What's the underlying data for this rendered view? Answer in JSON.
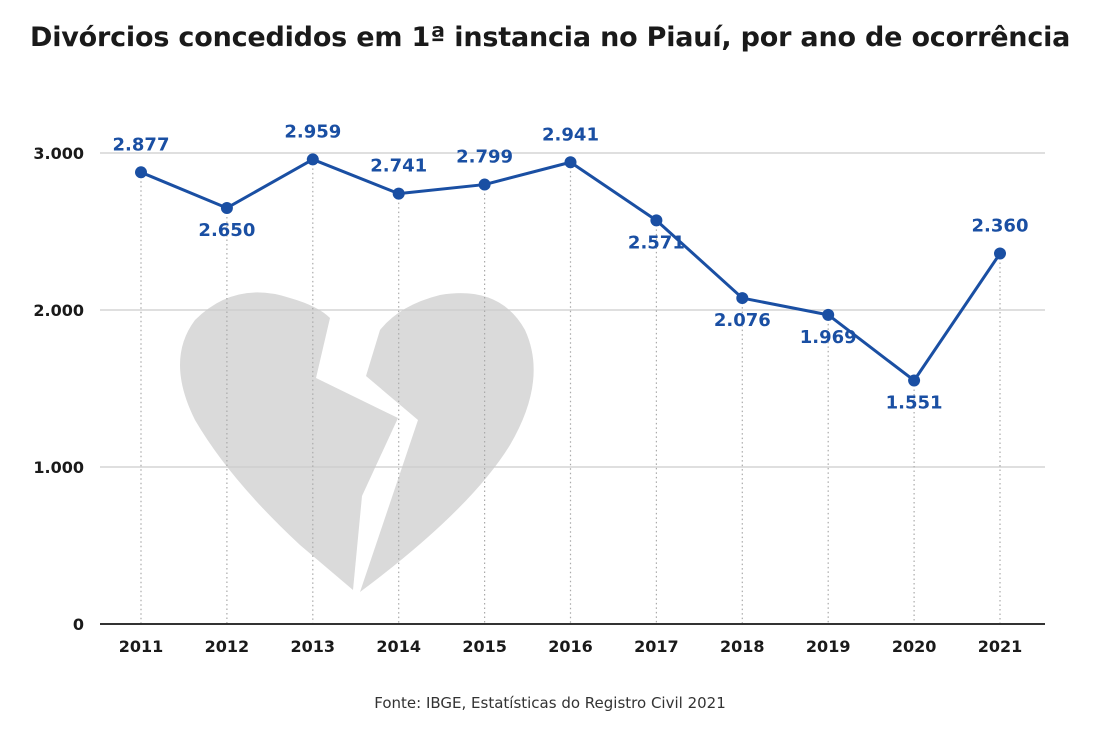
{
  "title": "Divórcios concedidos em 1ª instancia no Piauí, por ano de ocorrência",
  "source": "Fonte: IBGE, Estatísticas do Registro Civil 2021",
  "colors": {
    "line": "#1a4fa3",
    "label": "#1a4fa3",
    "grid": "#cccccc",
    "axis": "#333333",
    "watermark": "#dadada",
    "dropline": "#aaaaaa"
  },
  "watermark_icon": "broken-heart-icon",
  "chart_data": {
    "type": "line",
    "title": "Divórcios concedidos em 1ª instancia no Piauí, por ano de ocorrência",
    "xlabel": "",
    "ylabel": "",
    "categories": [
      "2011",
      "2012",
      "2013",
      "2014",
      "2015",
      "2016",
      "2017",
      "2018",
      "2019",
      "2020",
      "2021"
    ],
    "values": [
      2877,
      2650,
      2959,
      2741,
      2799,
      2941,
      2571,
      2076,
      1969,
      1551,
      2360
    ],
    "value_labels": [
      "2.877",
      "2.650",
      "2.959",
      "2.741",
      "2.799",
      "2.941",
      "2.571",
      "2.076",
      "1.969",
      "1.551",
      "2.360"
    ],
    "label_position": [
      "above",
      "below",
      "above",
      "above",
      "above",
      "above",
      "below",
      "below",
      "below",
      "below",
      "above"
    ],
    "ylim": [
      0,
      3000
    ],
    "yticks": [
      0,
      1000,
      2000,
      3000
    ],
    "ytick_labels": [
      "0",
      "1.000",
      "2.000",
      "3.000"
    ],
    "grid": true,
    "legend": false
  }
}
